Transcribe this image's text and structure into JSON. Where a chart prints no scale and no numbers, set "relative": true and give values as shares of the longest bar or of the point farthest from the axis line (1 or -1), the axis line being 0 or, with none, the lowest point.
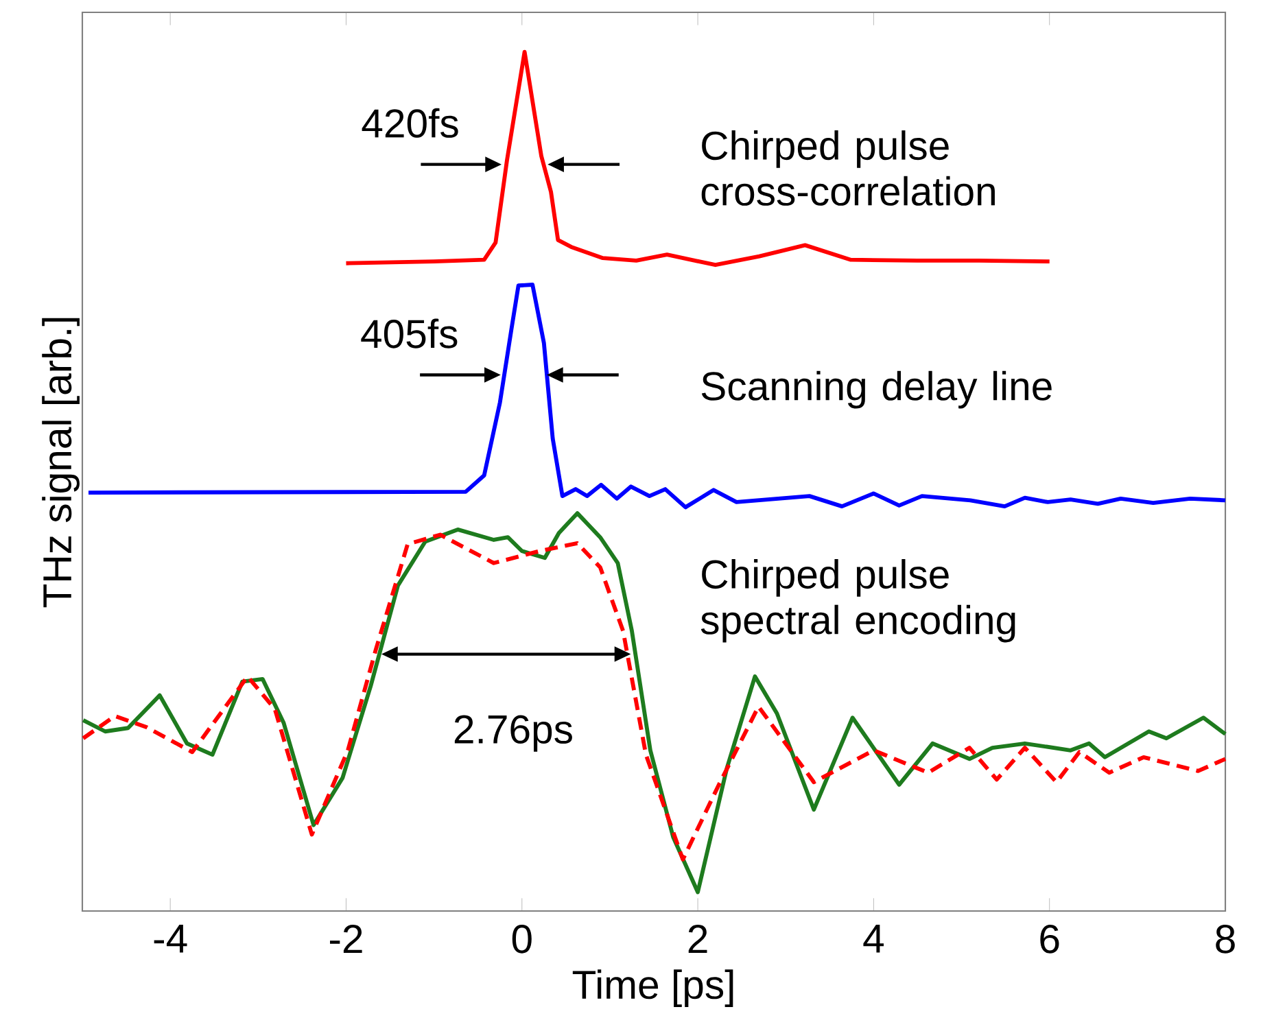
{
  "chart_data": {
    "type": "line",
    "relative": true,
    "xlabel": "Time [ps]",
    "ylabel": "THz signal [arb.]",
    "xlim": [
      -5,
      8
    ],
    "xticks": [
      -4,
      -2,
      0,
      2,
      4,
      6,
      8
    ],
    "grid": false,
    "series": [
      {
        "name": "Chirped pulse cross-correlation",
        "color": "#ff0000",
        "line_style": "solid",
        "x": [
          -2,
          -1,
          -0.43,
          -0.3,
          -0.17,
          0.03,
          0.22,
          0.33,
          0.41,
          0.56,
          0.92,
          1.3,
          1.65,
          2.2,
          2.7,
          3.22,
          3.74,
          4.5,
          5.2,
          6
        ],
        "values": [
          0.754,
          0.756,
          0.758,
          0.778,
          0.874,
          1.0,
          0.879,
          0.837,
          0.781,
          0.773,
          0.76,
          0.757,
          0.764,
          0.752,
          0.762,
          0.775,
          0.758,
          0.757,
          0.757,
          0.756
        ]
      },
      {
        "name": "Scanning delay line",
        "color": "#0000ff",
        "line_style": "solid",
        "x": [
          -4.93,
          -0.64,
          -0.43,
          -0.25,
          -0.12,
          -0.04,
          0.12,
          0.25,
          0.35,
          0.46,
          0.61,
          0.74,
          0.9,
          1.08,
          1.24,
          1.45,
          1.63,
          1.86,
          2.18,
          2.44,
          3.27,
          3.64,
          4.0,
          4.29,
          4.55,
          5.1,
          5.49,
          5.72,
          5.98,
          6.24,
          6.55,
          6.81,
          7.18,
          7.6,
          8.0
        ],
        "values": [
          0.487,
          0.488,
          0.507,
          0.592,
          0.677,
          0.728,
          0.729,
          0.661,
          0.55,
          0.483,
          0.491,
          0.483,
          0.496,
          0.48,
          0.494,
          0.483,
          0.491,
          0.47,
          0.49,
          0.476,
          0.483,
          0.471,
          0.486,
          0.472,
          0.483,
          0.478,
          0.471,
          0.481,
          0.476,
          0.479,
          0.474,
          0.48,
          0.475,
          0.48,
          0.478
        ]
      },
      {
        "name": "Chirped pulse spectral encoding",
        "color": "#1e7b1e",
        "line_style": "solid",
        "x": [
          -4.99,
          -4.74,
          -4.48,
          -4.12,
          -3.81,
          -3.52,
          -3.18,
          -2.95,
          -2.71,
          -2.37,
          -2.04,
          -1.72,
          -1.41,
          -1.1,
          -0.73,
          -0.32,
          -0.16,
          0.0,
          0.26,
          0.42,
          0.63,
          0.89,
          1.09,
          1.25,
          1.46,
          1.72,
          2.0,
          2.33,
          2.65,
          2.9,
          3.32,
          3.76,
          4.29,
          4.67,
          5.09,
          5.35,
          5.72,
          6.24,
          6.45,
          6.63,
          7.13,
          7.33,
          7.75,
          8.0
        ],
        "values": [
          0.222,
          0.209,
          0.213,
          0.251,
          0.195,
          0.182,
          0.267,
          0.27,
          0.219,
          0.1,
          0.155,
          0.262,
          0.379,
          0.43,
          0.444,
          0.432,
          0.435,
          0.419,
          0.411,
          0.44,
          0.463,
          0.435,
          0.405,
          0.326,
          0.187,
          0.086,
          0.022,
          0.166,
          0.273,
          0.23,
          0.118,
          0.225,
          0.147,
          0.195,
          0.177,
          0.19,
          0.195,
          0.187,
          0.195,
          0.179,
          0.209,
          0.201,
          0.225,
          0.206
        ]
      },
      {
        "color": "#ff0000",
        "line_style": "dashed",
        "x": [
          -4.99,
          -4.63,
          -4.27,
          -3.75,
          -3.12,
          -2.81,
          -2.39,
          -1.98,
          -1.66,
          -1.3,
          -0.93,
          -0.32,
          0.2,
          0.63,
          0.89,
          1.15,
          1.41,
          1.83,
          2.23,
          2.69,
          3.32,
          4.0,
          4.62,
          5.09,
          5.4,
          5.72,
          6.08,
          6.34,
          6.68,
          7.07,
          7.69,
          8.0
        ],
        "values": [
          0.201,
          0.227,
          0.214,
          0.185,
          0.273,
          0.235,
          0.089,
          0.187,
          0.305,
          0.427,
          0.438,
          0.405,
          0.419,
          0.428,
          0.4,
          0.326,
          0.182,
          0.06,
          0.145,
          0.238,
          0.15,
          0.187,
          0.161,
          0.19,
          0.153,
          0.19,
          0.15,
          0.185,
          0.161,
          0.179,
          0.163,
          0.177
        ]
      }
    ],
    "annotations": [
      "420fs",
      "405fs",
      "2.76ps"
    ]
  }
}
